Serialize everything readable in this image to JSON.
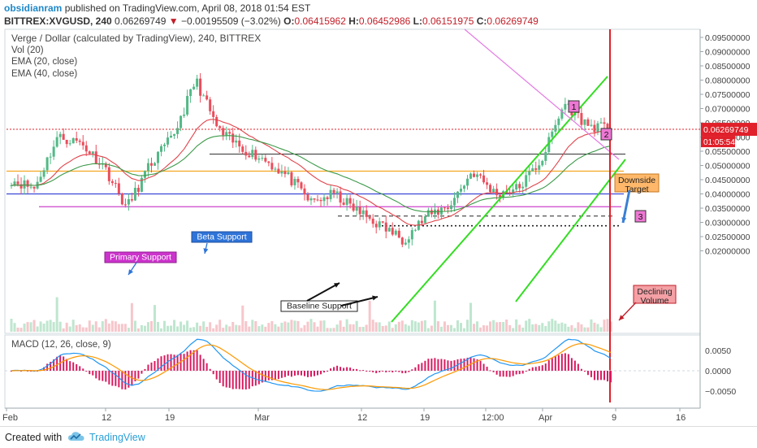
{
  "header": {
    "author": "obsidianram",
    "published_text": "published on TradingView.com, April 08, 2018 01:54 EST",
    "symbol": "BITTREX:XVGUSD, 240",
    "last": "0.06269749",
    "change_arrow": "▼",
    "change": "−0.00195509 (−3.02%)",
    "ohlc": {
      "o_label": "O:",
      "o": "0.06415962",
      "h_label": "H:",
      "h": "0.06452986",
      "l_label": "L:",
      "l": "0.06151975",
      "c_label": "C:",
      "c": "0.06269749"
    }
  },
  "legend": {
    "title": "Verge / Dollar (calculated by TradingView), 240, BITTREX",
    "vol": "Vol (20)",
    "ema20": "EMA (20, close)",
    "ema40": "EMA (40, close)"
  },
  "price_axis": {
    "ticks": [
      "0.09500000",
      "0.09000000",
      "0.08500000",
      "0.08000000",
      "0.07500000",
      "0.07000000",
      "0.06500000",
      "0.06000000",
      "0.05500000",
      "0.05000000",
      "0.04500000",
      "0.04000000",
      "0.03500000",
      "0.03000000",
      "0.02500000",
      "0.02000000"
    ],
    "last_label": "0.06269749",
    "countdown": "01:05:54"
  },
  "time_axis": [
    "Feb",
    "12",
    "19",
    "Mar",
    "12",
    "19",
    "12:00",
    "Apr",
    "9",
    "16"
  ],
  "macd": {
    "title": "MACD (12, 26, close, 9)",
    "ticks": [
      "0.0050",
      "0.0000",
      "−0.0050"
    ]
  },
  "annotations": {
    "beta_support": "Beta Support",
    "primary_support": "Primary Support",
    "baseline_support": "Baseline Support",
    "downside_target": "Downside Target",
    "declining_volume": "Declining Volume",
    "markers": [
      "1",
      "2",
      "3"
    ]
  },
  "colors": {
    "up": "#53b987",
    "down": "#eb4d5c",
    "channel": "#33dd22",
    "resistance": "#e37be3",
    "beta_line": "#3a46d6",
    "primary_line": "#cc44cc",
    "orange_line": "#f5a623",
    "black_line": "#333333",
    "macd": "#2196f3",
    "signal": "#ff9800",
    "hist": "#d81b60",
    "vertical_red": "#e0202a"
  },
  "footer": {
    "created_with": "Created with",
    "brand": "TradingView"
  },
  "chart_data": {
    "type": "candlestick",
    "title": "Verge / Dollar (calculated by TradingView), 240, BITTREX",
    "x": [
      "Feb",
      "12",
      "19",
      "Mar",
      "12",
      "19",
      "12:00",
      "Apr",
      "9",
      "16"
    ],
    "closes_approx": [
      0.045,
      0.042,
      0.06,
      0.058,
      0.05,
      0.035,
      0.05,
      0.06,
      0.08,
      0.062,
      0.056,
      0.052,
      0.046,
      0.037,
      0.04,
      0.034,
      0.029,
      0.024,
      0.032,
      0.036,
      0.048,
      0.04,
      0.042,
      0.052,
      0.072,
      0.064,
      0.0627
    ],
    "ylim": [
      0.02,
      0.095
    ],
    "levels": {
      "black": 0.054,
      "orange": 0.048,
      "beta": 0.04,
      "primary": 0.0355,
      "dashed": 0.0322,
      "dotted": 0.0288
    },
    "macd_ylim": [
      -0.008,
      0.008
    ]
  }
}
